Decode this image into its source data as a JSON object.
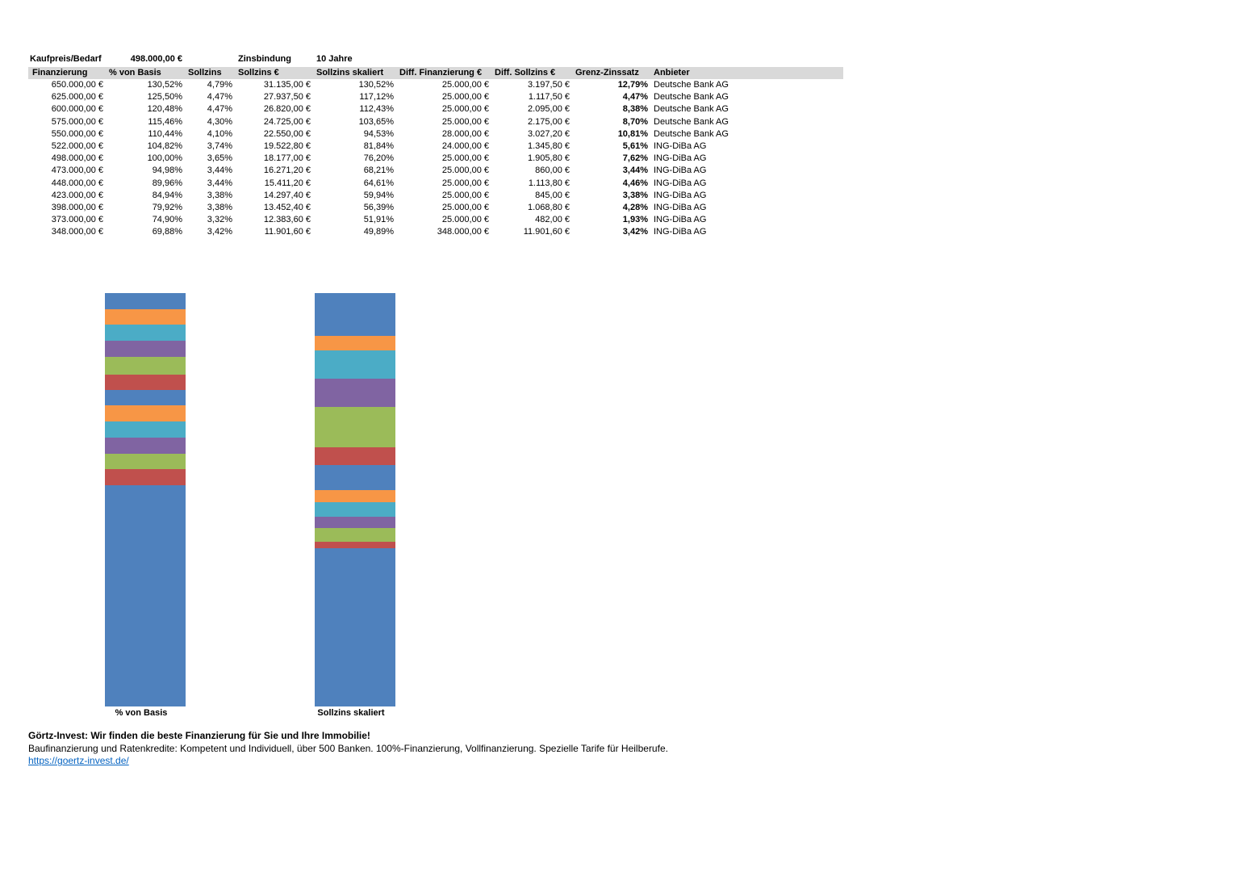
{
  "top_info": {
    "kaufpreis_label": "Kaufpreis/Bedarf",
    "kaufpreis_value": "498.000,00 €",
    "zinsbindung_label": "Zinsbindung",
    "zinsbindung_value": "10 Jahre"
  },
  "table": {
    "headers": [
      "Finanzierung",
      "% von Basis",
      "Sollzins",
      "Sollzins €",
      "Sollzins skaliert",
      "Diff. Finanzierung €",
      "Diff. Sollzins €",
      "Grenz-Zinssatz",
      "Anbieter"
    ],
    "rows": [
      [
        "650.000,00 €",
        "130,52%",
        "4,79%",
        "31.135,00 €",
        "130,52%",
        "25.000,00 €",
        "3.197,50 €",
        "12,79%",
        "Deutsche Bank AG"
      ],
      [
        "625.000,00 €",
        "125,50%",
        "4,47%",
        "27.937,50 €",
        "117,12%",
        "25.000,00 €",
        "1.117,50 €",
        "4,47%",
        "Deutsche Bank AG"
      ],
      [
        "600.000,00 €",
        "120,48%",
        "4,47%",
        "26.820,00 €",
        "112,43%",
        "25.000,00 €",
        "2.095,00 €",
        "8,38%",
        "Deutsche Bank AG"
      ],
      [
        "575.000,00 €",
        "115,46%",
        "4,30%",
        "24.725,00 €",
        "103,65%",
        "25.000,00 €",
        "2.175,00 €",
        "8,70%",
        "Deutsche Bank AG"
      ],
      [
        "550.000,00 €",
        "110,44%",
        "4,10%",
        "22.550,00 €",
        "94,53%",
        "28.000,00 €",
        "3.027,20 €",
        "10,81%",
        "Deutsche Bank AG"
      ],
      [
        "522.000,00 €",
        "104,82%",
        "3,74%",
        "19.522,80 €",
        "81,84%",
        "24.000,00 €",
        "1.345,80 €",
        "5,61%",
        "ING-DiBa AG"
      ],
      [
        "498.000,00 €",
        "100,00%",
        "3,65%",
        "18.177,00 €",
        "76,20%",
        "25.000,00 €",
        "1.905,80 €",
        "7,62%",
        "ING-DiBa AG"
      ],
      [
        "473.000,00 €",
        "94,98%",
        "3,44%",
        "16.271,20 €",
        "68,21%",
        "25.000,00 €",
        "860,00 €",
        "3,44%",
        "ING-DiBa AG"
      ],
      [
        "448.000,00 €",
        "89,96%",
        "3,44%",
        "15.411,20 €",
        "64,61%",
        "25.000,00 €",
        "1.113,80 €",
        "4,46%",
        "ING-DiBa AG"
      ],
      [
        "423.000,00 €",
        "84,94%",
        "3,38%",
        "14.297,40 €",
        "59,94%",
        "25.000,00 €",
        "845,00 €",
        "3,38%",
        "ING-DiBa AG"
      ],
      [
        "398.000,00 €",
        "79,92%",
        "3,38%",
        "13.452,40 €",
        "56,39%",
        "25.000,00 €",
        "1.068,80 €",
        "4,28%",
        "ING-DiBa AG"
      ],
      [
        "373.000,00 €",
        "74,90%",
        "3,32%",
        "12.383,60 €",
        "51,91%",
        "25.000,00 €",
        "482,00 €",
        "1,93%",
        "ING-DiBa AG"
      ],
      [
        "348.000,00 €",
        "69,88%",
        "3,42%",
        "11.901,60 €",
        "49,89%",
        "348.000,00 €",
        "11.901,60 €",
        "3,42%",
        "ING-DiBa AG"
      ]
    ]
  },
  "chart_data": [
    {
      "type": "bar",
      "subtype": "stacked-column",
      "axis_label": "% von Basis",
      "total": 130.52,
      "ylim": [
        0,
        130.52
      ],
      "grid": false,
      "legend": false,
      "segments_bottom_to_top": [
        {
          "name": "348.000,00 €",
          "value": 69.88,
          "color": "#4F81BD"
        },
        {
          "name": "373.000,00 €",
          "value": 5.02,
          "color": "#C0504D"
        },
        {
          "name": "398.000,00 €",
          "value": 5.02,
          "color": "#9BBB59"
        },
        {
          "name": "423.000,00 €",
          "value": 5.02,
          "color": "#8064A2"
        },
        {
          "name": "448.000,00 €",
          "value": 5.02,
          "color": "#4BACC6"
        },
        {
          "name": "473.000,00 €",
          "value": 5.02,
          "color": "#F79646"
        },
        {
          "name": "498.000,00 €",
          "value": 5.02,
          "color": "#4F81BD"
        },
        {
          "name": "522.000,00 €",
          "value": 4.82,
          "color": "#C0504D"
        },
        {
          "name": "550.000,00 €",
          "value": 5.62,
          "color": "#9BBB59"
        },
        {
          "name": "575.000,00 €",
          "value": 5.02,
          "color": "#8064A2"
        },
        {
          "name": "600.000,00 €",
          "value": 5.02,
          "color": "#4BACC6"
        },
        {
          "name": "625.000,00 €",
          "value": 5.02,
          "color": "#F79646"
        },
        {
          "name": "650.000,00 €",
          "value": 5.02,
          "color": "#4F81BD"
        }
      ]
    },
    {
      "type": "bar",
      "subtype": "stacked-column",
      "axis_label": "Sollzins skaliert",
      "total": 130.52,
      "ylim": [
        0,
        130.52
      ],
      "grid": false,
      "legend": false,
      "segments_bottom_to_top": [
        {
          "name": "348.000,00 €",
          "value": 49.89,
          "color": "#4F81BD"
        },
        {
          "name": "373.000,00 €",
          "value": 2.02,
          "color": "#C0504D"
        },
        {
          "name": "398.000,00 €",
          "value": 4.48,
          "color": "#9BBB59"
        },
        {
          "name": "423.000,00 €",
          "value": 3.55,
          "color": "#8064A2"
        },
        {
          "name": "448.000,00 €",
          "value": 4.67,
          "color": "#4BACC6"
        },
        {
          "name": "473.000,00 €",
          "value": 3.6,
          "color": "#F79646"
        },
        {
          "name": "498.000,00 €",
          "value": 7.99,
          "color": "#4F81BD"
        },
        {
          "name": "522.000,00 €",
          "value": 5.64,
          "color": "#C0504D"
        },
        {
          "name": "550.000,00 €",
          "value": 12.69,
          "color": "#9BBB59"
        },
        {
          "name": "575.000,00 €",
          "value": 9.12,
          "color": "#8064A2"
        },
        {
          "name": "600.000,00 €",
          "value": 8.78,
          "color": "#4BACC6"
        },
        {
          "name": "625.000,00 €",
          "value": 4.69,
          "color": "#F79646"
        },
        {
          "name": "650.000,00 €",
          "value": 13.4,
          "color": "#4F81BD"
        }
      ]
    }
  ],
  "colors": {
    "palette": [
      "#4F81BD",
      "#C0504D",
      "#9BBB59",
      "#8064A2",
      "#4BACC6",
      "#F79646"
    ],
    "header_bg": "#D9D9D9",
    "link": "#0563C1"
  },
  "footer": {
    "headline": "Görtz-Invest: Wir finden die beste Finanzierung für Sie und Ihre Immobilie!",
    "description": "Baufinanzierung und Ratenkredite: Kompetent und Individuell, über 500 Banken. 100%-Finanzierung, Vollfinanzierung. Spezielle Tarife für Heilberufe.",
    "link": "https://goertz-invest.de/"
  }
}
